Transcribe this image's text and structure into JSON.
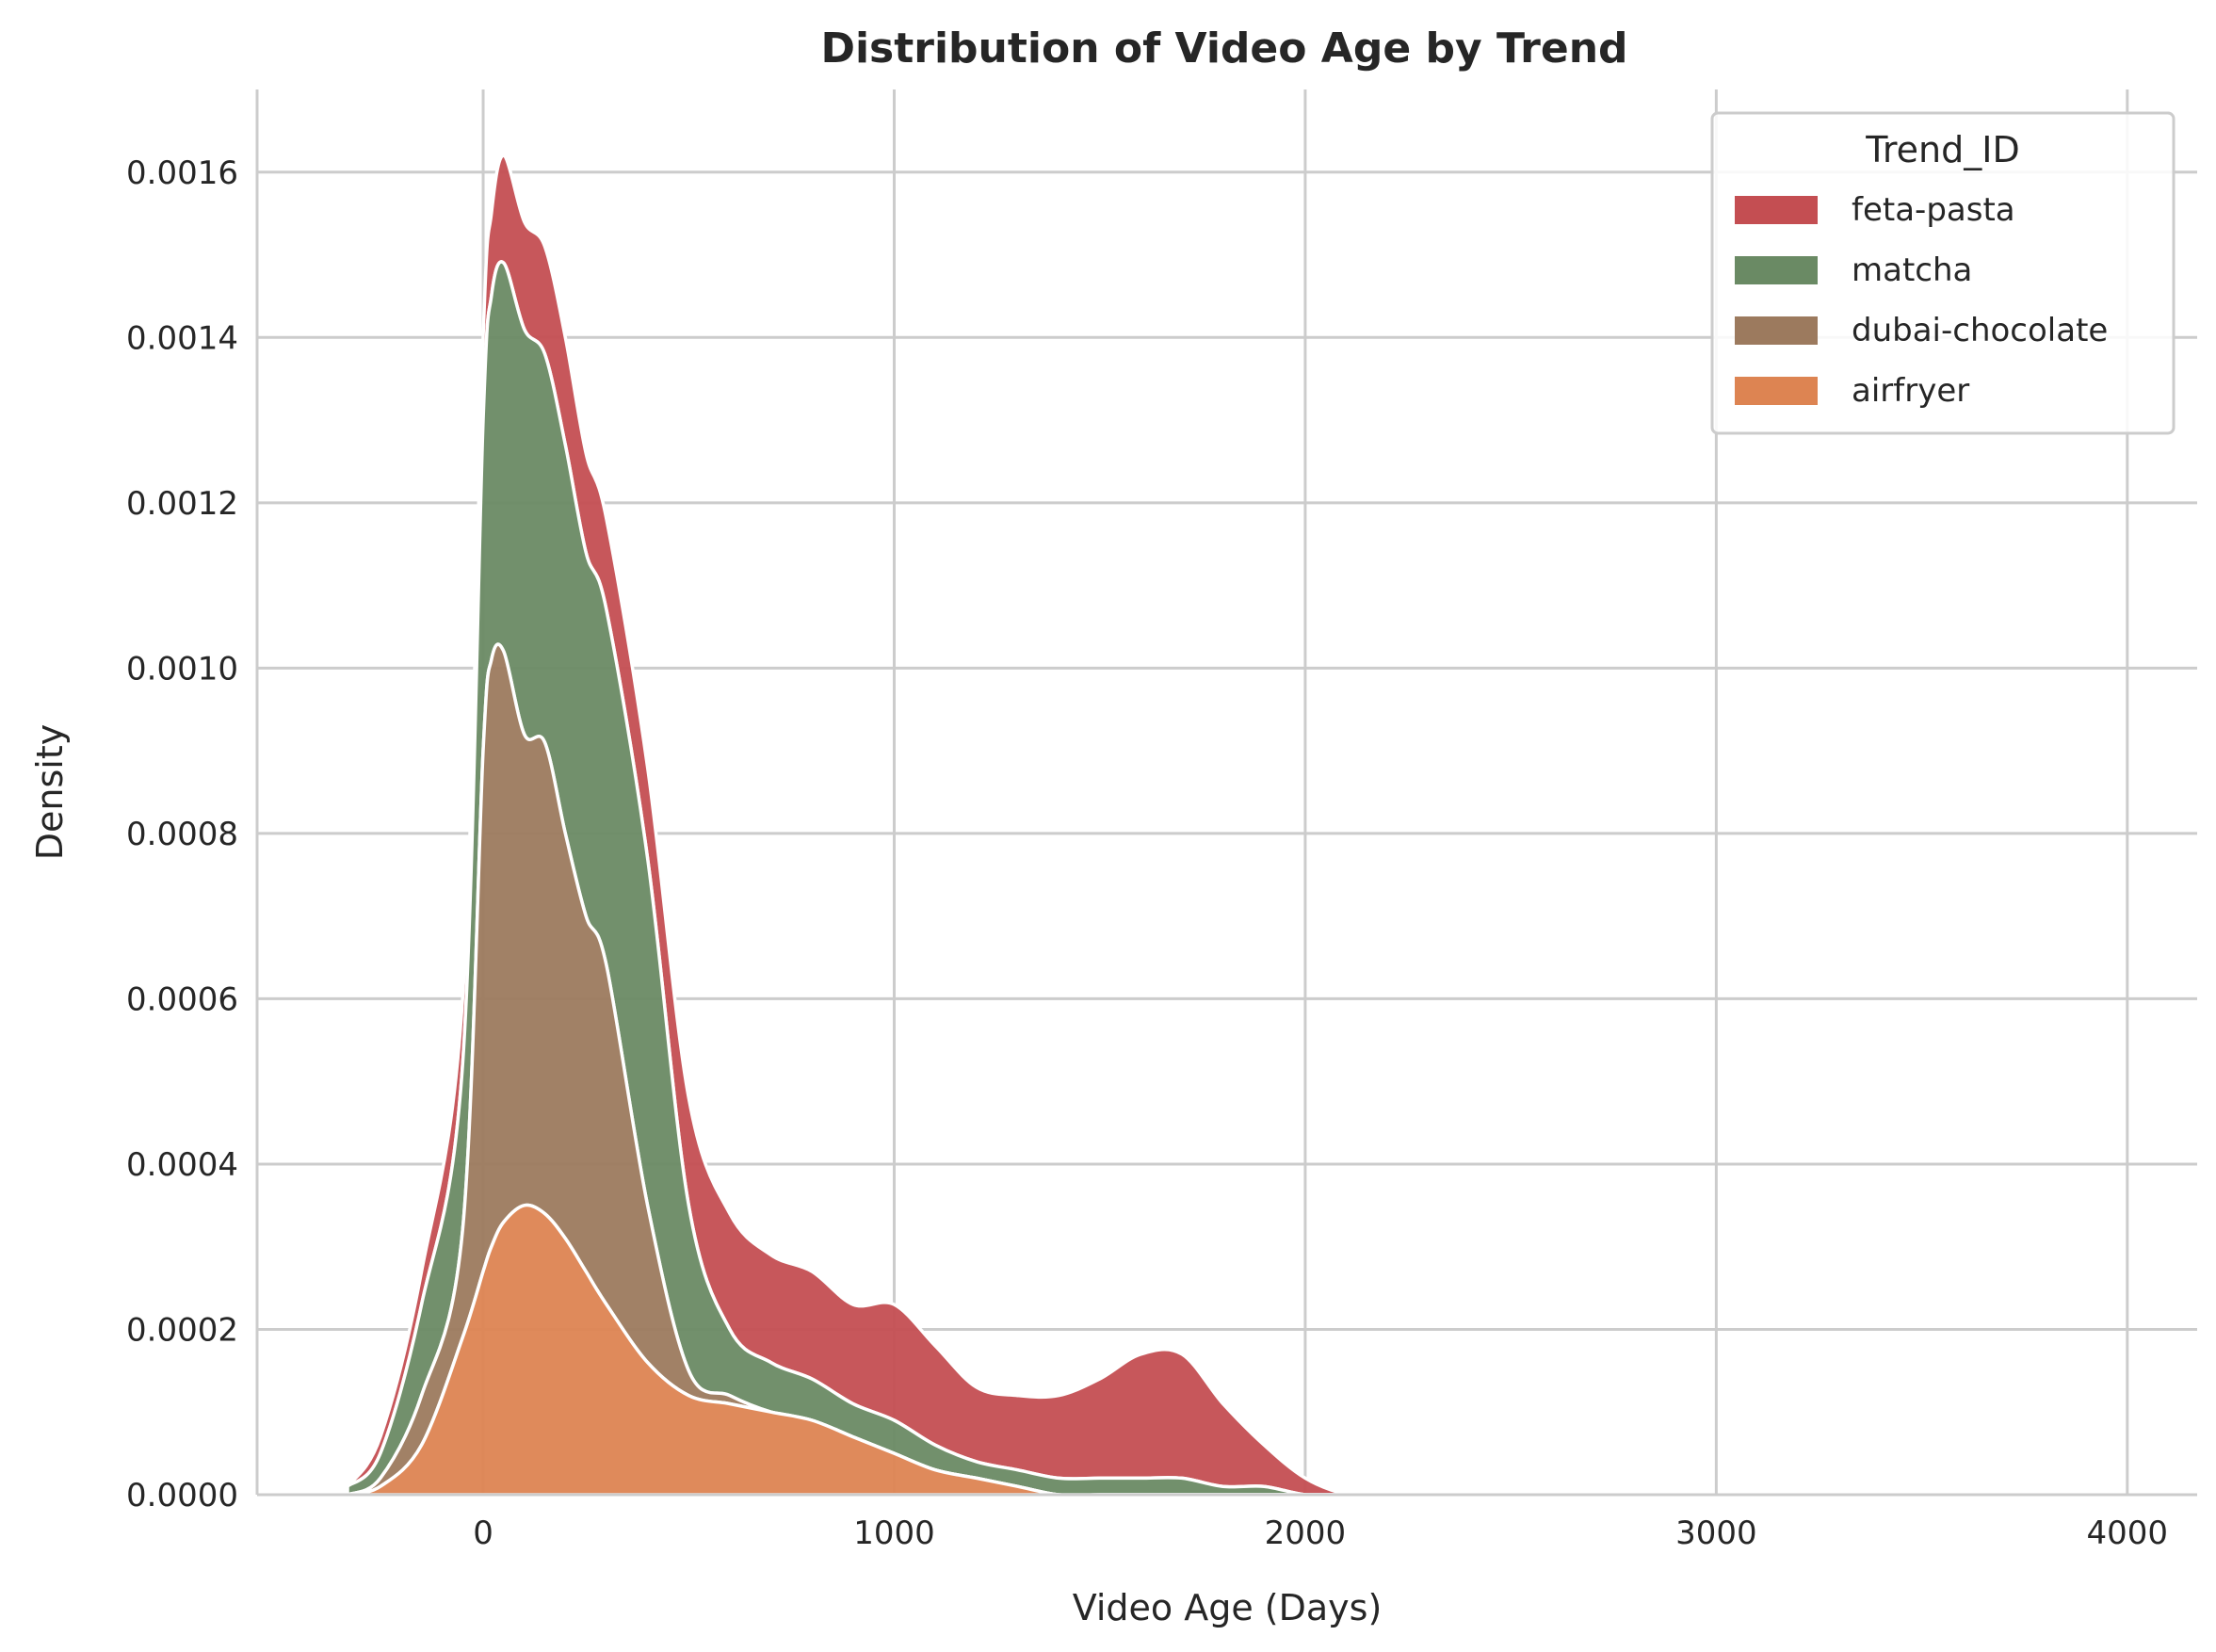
{
  "chart_data": {
    "type": "area",
    "stacked": true,
    "title": "Distribution of Video Age by Trend",
    "xlabel": "Video Age (Days)",
    "ylabel": "Density",
    "xlim": [
      -550,
      4170
    ],
    "ylim": [
      0,
      0.0017
    ],
    "xticks": [
      0,
      1000,
      2000,
      3000,
      4000
    ],
    "xtick_labels": [
      "0",
      "1000",
      "2000",
      "3000",
      "4000"
    ],
    "yticks": [
      0,
      0.0002,
      0.0004,
      0.0006,
      0.0008,
      0.001,
      0.0012,
      0.0014,
      0.0016
    ],
    "ytick_labels": [
      "0.0000",
      "0.0002",
      "0.0004",
      "0.0006",
      "0.0008",
      "0.0010",
      "0.0012",
      "0.0014",
      "0.0016"
    ],
    "grid": true,
    "legend": {
      "title": "Trend_ID",
      "position": "top-right"
    },
    "x": [
      -330,
      -250,
      -150,
      -50,
      0,
      20,
      50,
      100,
      150,
      200,
      250,
      300,
      400,
      500,
      600,
      700,
      800,
      900,
      1000,
      1100,
      1200,
      1300,
      1400,
      1500,
      1600,
      1700,
      1800,
      1900,
      2000,
      2100,
      2150
    ],
    "series": [
      {
        "name": "airfryer",
        "color": "#dd8452",
        "values": [
          0,
          1e-05,
          6e-05,
          0.00019,
          0.00027,
          0.0003,
          0.00033,
          0.00035,
          0.00034,
          0.00031,
          0.00027,
          0.00023,
          0.00016,
          0.00012,
          0.00011,
          0.0001,
          9e-05,
          7e-05,
          5e-05,
          3e-05,
          2e-05,
          1e-05,
          0,
          0,
          0,
          0,
          0,
          0,
          0,
          0,
          0
        ]
      },
      {
        "name": "dubai-chocolate",
        "color": "#9c7a5e",
        "values": [
          0,
          1e-05,
          6e-05,
          0.00013,
          0.00063,
          0.00071,
          0.00069,
          0.00057,
          0.00057,
          0.00049,
          0.00043,
          0.00041,
          0.00019,
          3e-05,
          1e-05,
          0,
          0,
          0,
          0,
          0,
          0,
          0,
          0,
          0,
          0,
          0,
          0,
          0,
          0,
          0,
          0
        ]
      },
      {
        "name": "matcha",
        "color": "#6a8a64",
        "values": [
          1e-05,
          3e-05,
          0.00011,
          0.0002,
          0.0004,
          0.00044,
          0.00047,
          0.00049,
          0.00047,
          0.00047,
          0.00044,
          0.00043,
          0.00042,
          0.0002,
          8e-05,
          6e-05,
          5e-05,
          4e-05,
          4e-05,
          3e-05,
          2e-05,
          2e-05,
          2e-05,
          2e-05,
          2e-05,
          2e-05,
          1e-05,
          1e-05,
          0,
          0,
          0
        ]
      },
      {
        "name": "feta-pasta",
        "color": "#c44e52",
        "values": [
          0,
          2e-05,
          4e-05,
          8e-05,
          0.0001,
          0.0001,
          0.00013,
          0.00013,
          0.00013,
          0.00013,
          0.00012,
          0.00011,
          0.00011,
          0.00013,
          0.00014,
          0.00013,
          0.00013,
          0.00012,
          0.00014,
          0.00012,
          9e-05,
          9e-05,
          0.0001,
          0.00012,
          0.00015,
          0.00015,
          0.0001,
          5e-05,
          2e-05,
          0,
          0
        ]
      }
    ]
  }
}
